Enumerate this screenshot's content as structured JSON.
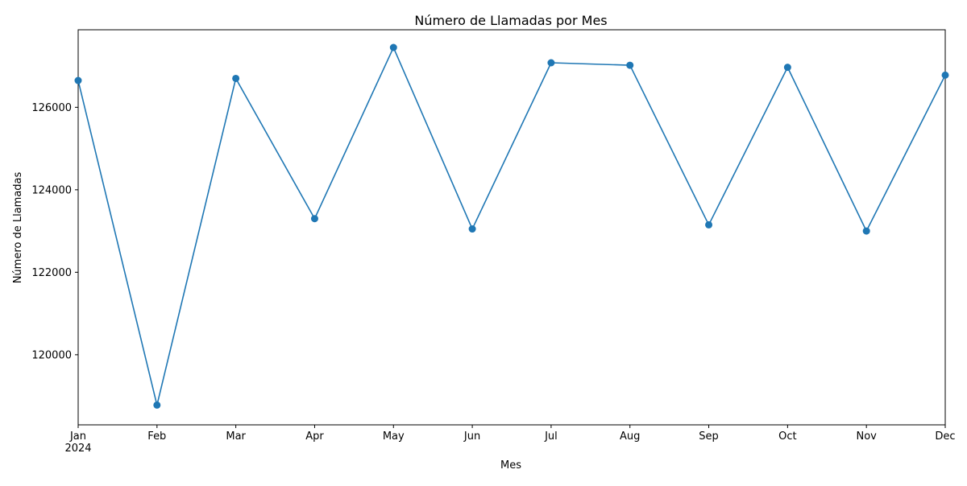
{
  "chart_data": {
    "type": "line",
    "title": "Número de Llamadas por Mes",
    "xlabel": "Mes",
    "ylabel": "Número de Llamadas",
    "categories": [
      "Jan",
      "Feb",
      "Mar",
      "Apr",
      "May",
      "Jun",
      "Jul",
      "Aug",
      "Sep",
      "Oct",
      "Nov",
      "Dec"
    ],
    "year_label": "2024",
    "series": [
      {
        "values": [
          126650,
          118780,
          126700,
          123300,
          127450,
          123050,
          127080,
          127020,
          123150,
          126970,
          123000,
          126780
        ],
        "color": "#1f77b4",
        "marker": "circle"
      }
    ],
    "yticks": [
      120000,
      122000,
      124000,
      126000
    ],
    "ylim": [
      118300,
      127880
    ],
    "grid": false,
    "legend": false
  }
}
